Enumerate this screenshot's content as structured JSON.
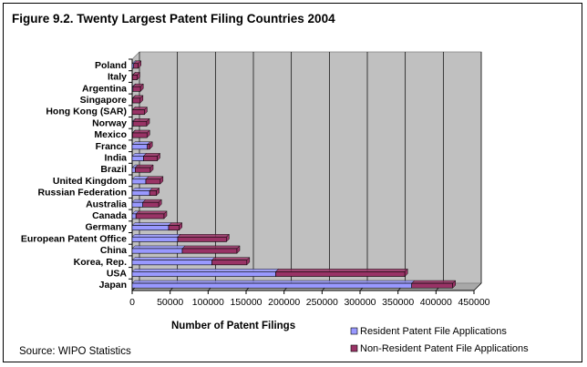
{
  "chart_data": {
    "type": "bar",
    "orientation": "horizontal",
    "stacked": true,
    "title": "Figure 9.2. Twenty Largest Patent Filing Countries 2004",
    "xlabel": "Number of Patent Filings",
    "ylabel": "",
    "xlim": [
      0,
      450000
    ],
    "xticks": [
      0,
      50000,
      100000,
      150000,
      200000,
      250000,
      300000,
      350000,
      400000,
      450000
    ],
    "grid": true,
    "legend_position": "bottom-right",
    "categories": [
      "Japan",
      "USA",
      "Korea, Rep.",
      "China",
      "European Patent Office",
      "Germany",
      "Canada",
      "Australia",
      "Russian Federation",
      "United Kingdom",
      "Brazil",
      "India",
      "France",
      "Mexico",
      "Norway",
      "Hong Kong (SAR)",
      "Singapore",
      "Argentina",
      "Italy",
      "Poland"
    ],
    "series": [
      {
        "name": "Resident Patent File Applications",
        "color": "#9999ff",
        "values": [
          368000,
          189000,
          105000,
          66000,
          60000,
          48000,
          5000,
          14000,
          23000,
          18000,
          4000,
          15000,
          20000,
          500,
          1200,
          100,
          600,
          1000,
          500,
          2000
        ]
      },
      {
        "name": "Non-Resident Patent File Applications",
        "color": "#993366",
        "values": [
          54000,
          170000,
          46000,
          72000,
          64000,
          14000,
          37000,
          21000,
          9000,
          19000,
          20000,
          18000,
          3000,
          19000,
          18000,
          16000,
          10000,
          10000,
          6000,
          6000
        ]
      }
    ]
  },
  "source": "Source: WIPO Statistics"
}
